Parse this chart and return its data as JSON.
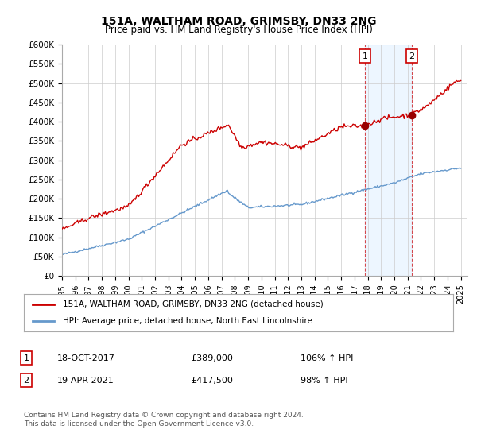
{
  "title": "151A, WALTHAM ROAD, GRIMSBY, DN33 2NG",
  "subtitle": "Price paid vs. HM Land Registry's House Price Index (HPI)",
  "ylabel_ticks": [
    "£0",
    "£50K",
    "£100K",
    "£150K",
    "£200K",
    "£250K",
    "£300K",
    "£350K",
    "£400K",
    "£450K",
    "£500K",
    "£550K",
    "£600K"
  ],
  "ylim": [
    0,
    600000
  ],
  "ytick_vals": [
    0,
    50000,
    100000,
    150000,
    200000,
    250000,
    300000,
    350000,
    400000,
    450000,
    500000,
    550000,
    600000
  ],
  "xlim_start": 1995.0,
  "xlim_end": 2025.5,
  "xtick_years": [
    1995,
    1996,
    1997,
    1998,
    1999,
    2000,
    2001,
    2002,
    2003,
    2004,
    2005,
    2006,
    2007,
    2008,
    2009,
    2010,
    2011,
    2012,
    2013,
    2014,
    2015,
    2016,
    2017,
    2018,
    2019,
    2020,
    2021,
    2022,
    2023,
    2024,
    2025
  ],
  "red_line_color": "#cc0000",
  "blue_line_color": "#6699cc",
  "marker_color": "#990000",
  "sale1_x": 2017.8,
  "sale1_y": 389000,
  "sale1_label": "1",
  "sale2_x": 2021.3,
  "sale2_y": 417500,
  "sale2_label": "2",
  "vline1_x": 2017.8,
  "vline2_x": 2021.3,
  "vline_color": "#cc0000",
  "vline_alpha": 0.4,
  "highlight_color": "#ddeeff",
  "legend_entry1": "151A, WALTHAM ROAD, GRIMSBY, DN33 2NG (detached house)",
  "legend_entry2": "HPI: Average price, detached house, North East Lincolnshire",
  "table_row1_num": "1",
  "table_row1_date": "18-OCT-2017",
  "table_row1_price": "£389,000",
  "table_row1_hpi": "106% ↑ HPI",
  "table_row2_num": "2",
  "table_row2_date": "19-APR-2021",
  "table_row2_price": "£417,500",
  "table_row2_hpi": "98% ↑ HPI",
  "footer": "Contains HM Land Registry data © Crown copyright and database right 2024.\nThis data is licensed under the Open Government Licence v3.0.",
  "bg_color": "#ffffff",
  "plot_bg_color": "#ffffff",
  "grid_color": "#cccccc"
}
